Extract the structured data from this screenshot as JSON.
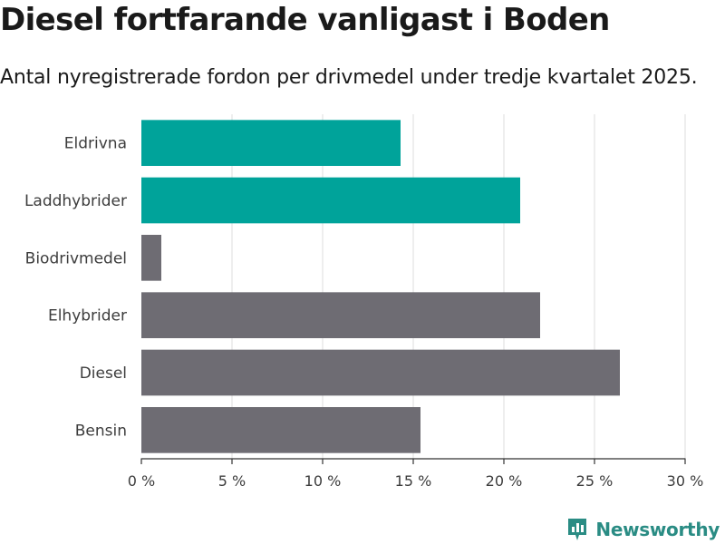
{
  "header": {
    "title": "Diesel fortfarande vanligast i Boden",
    "subtitle": "Antal nyregistrerade fordon per drivmedel under tredje kvartalet 2025."
  },
  "brand": {
    "name": "Newsworthy",
    "color": "#2a9d8f"
  },
  "colors": {
    "highlight": "#00a39a",
    "default": "#6e6c73",
    "grid": "#dddddd",
    "axis": "#333333"
  },
  "chart_data": {
    "type": "bar",
    "orientation": "horizontal",
    "title": "Diesel fortfarande vanligast i Boden",
    "subtitle": "Antal nyregistrerade fordon per drivmedel under tredje kvartalet 2025.",
    "categories": [
      "Eldrivna",
      "Laddhybrider",
      "Biodrivmedel",
      "Elhybrider",
      "Diesel",
      "Bensin"
    ],
    "values": [
      14.3,
      20.9,
      1.1,
      22.0,
      26.4,
      15.4
    ],
    "highlighted": [
      true,
      true,
      false,
      false,
      false,
      false
    ],
    "unit": "%",
    "xlim": [
      0,
      30
    ],
    "xticks": [
      0,
      5,
      10,
      15,
      20,
      25,
      30
    ],
    "xtick_labels": [
      "0 %",
      "5 %",
      "10 %",
      "15 %",
      "20 %",
      "25 %",
      "30 %"
    ],
    "grid": true
  }
}
